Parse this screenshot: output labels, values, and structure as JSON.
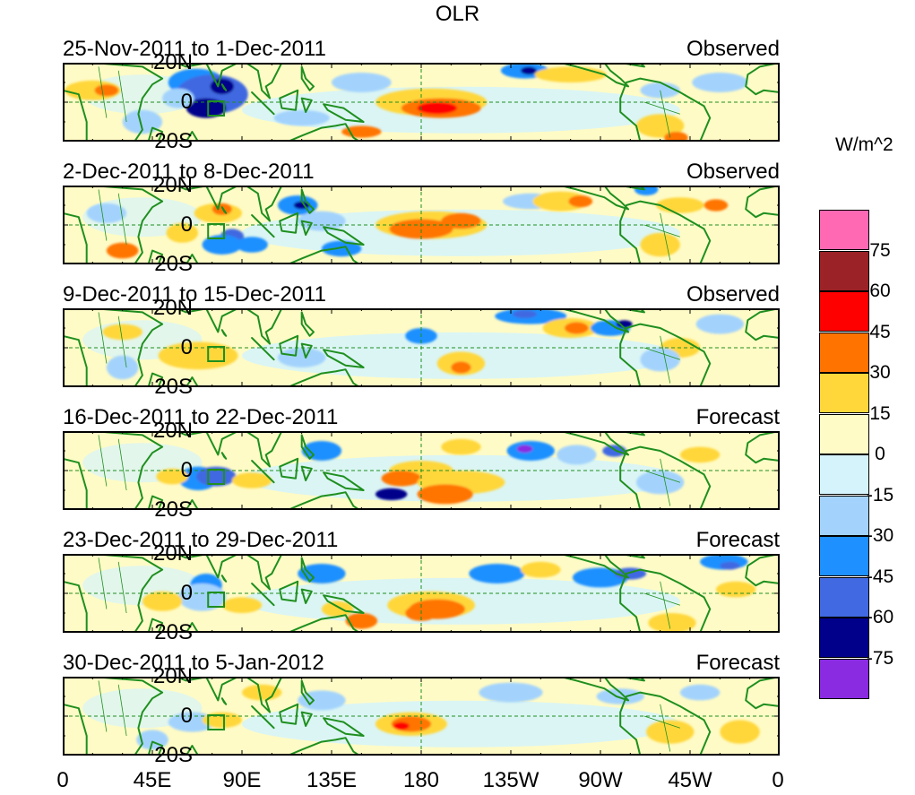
{
  "title": "OLR",
  "units": "W/m^2",
  "lat_labels": [
    "20N",
    "0",
    "20S"
  ],
  "lon_labels": [
    "0",
    "45E",
    "90E",
    "135E",
    "180",
    "135W",
    "90W",
    "45W",
    "0"
  ],
  "panels": [
    {
      "dates": "25-Nov-2011 to 1-Dec-2011",
      "type": "Observed"
    },
    {
      "dates": "2-Dec-2011 to 8-Dec-2011",
      "type": "Observed"
    },
    {
      "dates": "9-Dec-2011 to 15-Dec-2011",
      "type": "Observed"
    },
    {
      "dates": "16-Dec-2011 to 22-Dec-2011",
      "type": "Forecast"
    },
    {
      "dates": "23-Dec-2011 to 29-Dec-2011",
      "type": "Forecast"
    },
    {
      "dates": "30-Dec-2011 to 5-Jan-2012",
      "type": "Forecast"
    }
  ],
  "colorbar": {
    "levels": [
      "75",
      "60",
      "45",
      "30",
      "15",
      "0",
      "-15",
      "-30",
      "-45",
      "-60",
      "-75"
    ],
    "colors": [
      "#ff69b4",
      "#9b2226",
      "#ff0000",
      "#ff7400",
      "#ffd73a",
      "#fffbc6",
      "#d5f3fb",
      "#a3d3fd",
      "#1e90ff",
      "#4169e1",
      "#00008b",
      "#8a2be2"
    ]
  },
  "colors": {
    "land": "#1f8f1f",
    "frame": "#000000"
  }
}
